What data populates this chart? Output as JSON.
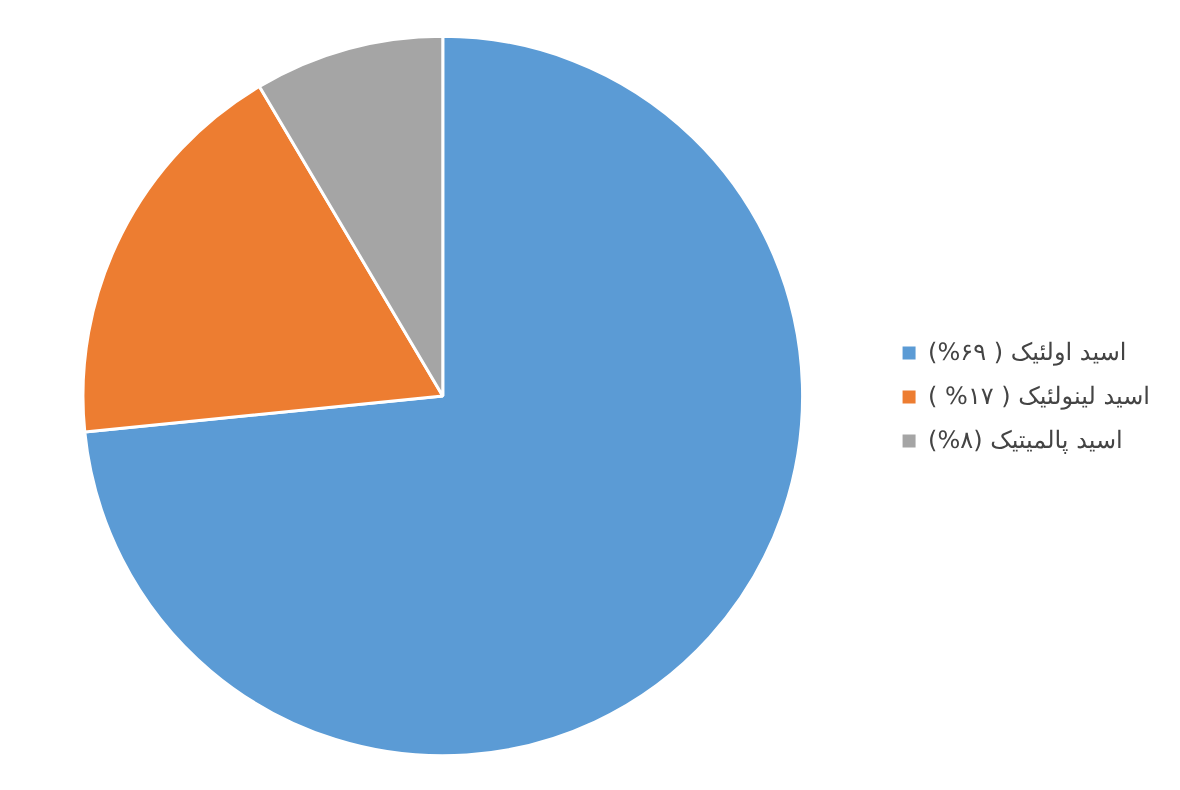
{
  "chart_data": {
    "type": "pie",
    "categories": [
      "اسید اولئیک ( ۶۹%)",
      "اسید لینولئیک ( ۱۷% )",
      "اسید پالمیتیک (۸%)"
    ],
    "values": [
      69,
      17,
      8
    ],
    "colors": [
      "#5b9bd5",
      "#ed7d31",
      "#a5a5a5"
    ],
    "legend": "right"
  }
}
